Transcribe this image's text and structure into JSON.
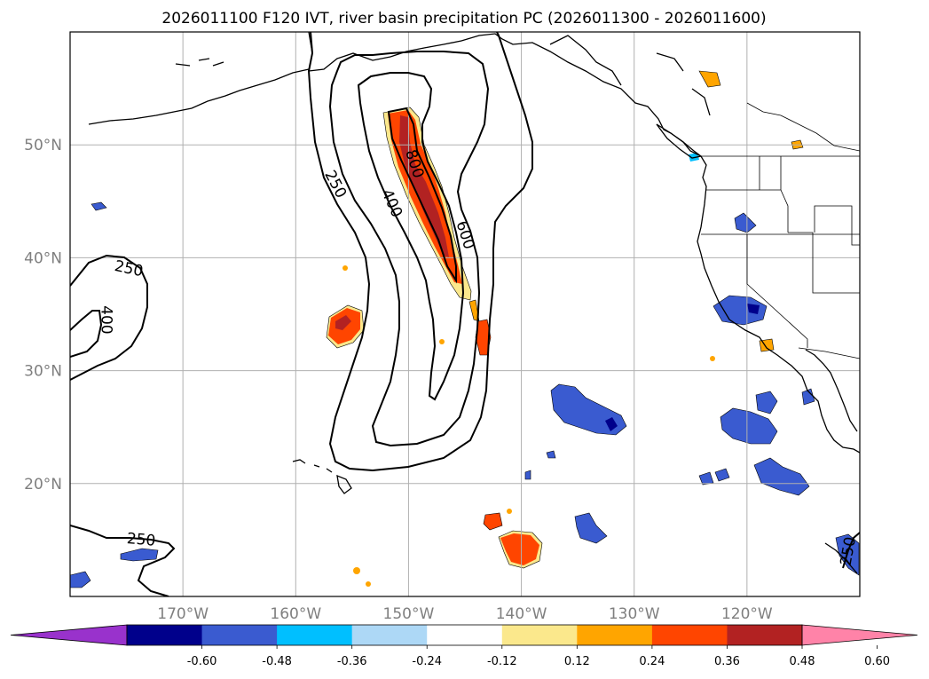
{
  "title": "2026011100 F120 IVT, river basin precipitation PC (2026011300 - 2026011600)",
  "map": {
    "lon_range": [
      -180,
      -110
    ],
    "lat_range": [
      10,
      60
    ],
    "lon_ticks": [
      {
        "value": -170,
        "label": "170°W"
      },
      {
        "value": -160,
        "label": "160°W"
      },
      {
        "value": -150,
        "label": "150°W"
      },
      {
        "value": -140,
        "label": "140°W"
      },
      {
        "value": -130,
        "label": "130°W"
      },
      {
        "value": -120,
        "label": "120°W"
      }
    ],
    "lat_ticks": [
      {
        "value": 50,
        "label": "50°N"
      },
      {
        "value": 40,
        "label": "40°N"
      },
      {
        "value": 30,
        "label": "30°N"
      },
      {
        "value": 20,
        "label": "20°N"
      }
    ],
    "contour_labels": [
      {
        "text": "250",
        "lon": -156.5,
        "lat": 46.5,
        "rotate": 62
      },
      {
        "text": "400",
        "lon": -151.5,
        "lat": 44.8,
        "rotate": 66
      },
      {
        "text": "800",
        "lon": -149.5,
        "lat": 48.3,
        "rotate": 72
      },
      {
        "text": "600",
        "lon": -145.0,
        "lat": 42.0,
        "rotate": 72
      },
      {
        "text": "250",
        "lon": -174.8,
        "lat": 39.0,
        "rotate": 12
      },
      {
        "text": "400",
        "lon": -176.8,
        "lat": 34.5,
        "rotate": 90
      },
      {
        "text": "250",
        "lon": -173.7,
        "lat": 15.0,
        "rotate": 5
      },
      {
        "text": "250",
        "lon": -111.0,
        "lat": 14.0,
        "rotate": -80
      }
    ]
  },
  "colorbar": {
    "ticks": [
      "-0.60",
      "-0.48",
      "-0.36",
      "-0.24",
      "-0.12",
      "0.12",
      "0.24",
      "0.36",
      "0.48",
      "0.60"
    ],
    "colors": [
      "#9932cc",
      "#00008b",
      "#3a5bd0",
      "#00bfff",
      "#add8f6",
      "#ffffff",
      "#fbe88c",
      "#ffa500",
      "#ff4500",
      "#b22222",
      "#ff83a8"
    ]
  }
}
